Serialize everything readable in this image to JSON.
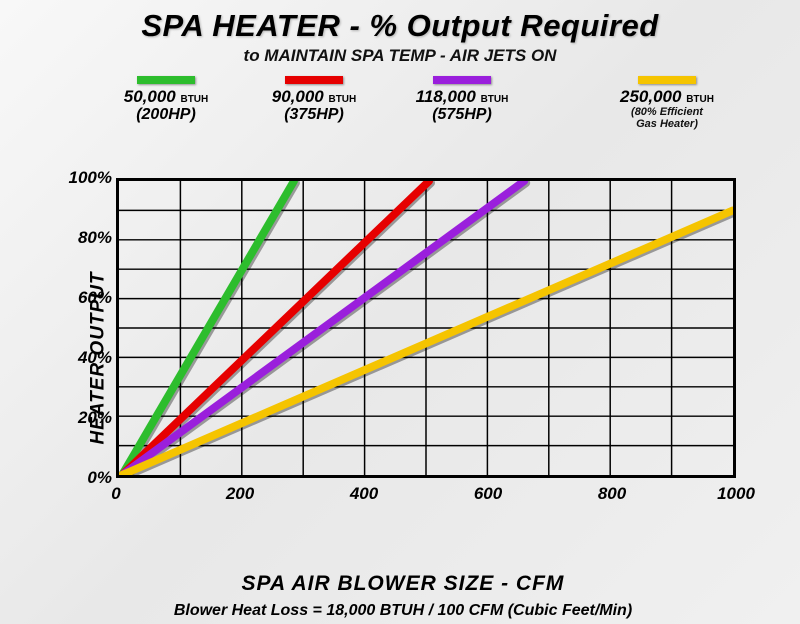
{
  "title": {
    "main": "SPA HEATER  - % Output Required",
    "sub": "to MAINTAIN SPA TEMP  - AIR JETS ON"
  },
  "legend": [
    {
      "color": "#2dbd2d",
      "btuh": "50,000",
      "unit": "BTUH",
      "sub": "(200HP)",
      "note": ""
    },
    {
      "color": "#e60000",
      "btuh": "90,000",
      "unit": "BTUH",
      "sub": "(375HP)",
      "note": ""
    },
    {
      "color": "#9a1fdc",
      "btuh": "118,000",
      "unit": "BTUH",
      "sub": "(575HP)",
      "note": ""
    },
    {
      "color": "#f5c400",
      "btuh": "250,000",
      "unit": "BTUH",
      "sub": "",
      "note": "(80% Efficient\nGas Heater)"
    }
  ],
  "axes": {
    "ylabel": "HEATER OUTPUT",
    "xlabel": "SPA AIR BLOWER SIZE - CFM",
    "ylim": [
      0,
      100
    ],
    "y_ticks": [
      "0%",
      "20%",
      "40%",
      "60%",
      "80%",
      "100%"
    ],
    "xlim": [
      0,
      1000
    ],
    "x_ticks": [
      "0",
      "200",
      "400",
      "600",
      "800",
      "1000"
    ],
    "grid_color": "#000000",
    "grid_width": 1.5,
    "minor_x_every": 100,
    "minor_y_every": 10
  },
  "series": [
    {
      "color": "#2dbd2d",
      "width": 8,
      "points": [
        [
          5,
          0
        ],
        [
          285,
          100
        ]
      ]
    },
    {
      "color": "#e60000",
      "width": 8,
      "points": [
        [
          5,
          0
        ],
        [
          505,
          100
        ]
      ]
    },
    {
      "color": "#9a1fdc",
      "width": 8,
      "points": [
        [
          5,
          0
        ],
        [
          660,
          100
        ]
      ]
    },
    {
      "color": "#f5c400",
      "width": 8,
      "points": [
        [
          5,
          0
        ],
        [
          1000,
          90
        ]
      ]
    }
  ],
  "footnote": "Blower Heat Loss = 18,000 BTUH / 100 CFM (Cubic Feet/Min)",
  "style": {
    "title_fontsize": 31,
    "subtitle_fontsize": 17,
    "legend_fontsize": 17,
    "axis_label_fontsize": 21,
    "tick_fontsize": 17,
    "footnote_fontsize": 16,
    "font_style": "italic",
    "font_weight": 800
  }
}
